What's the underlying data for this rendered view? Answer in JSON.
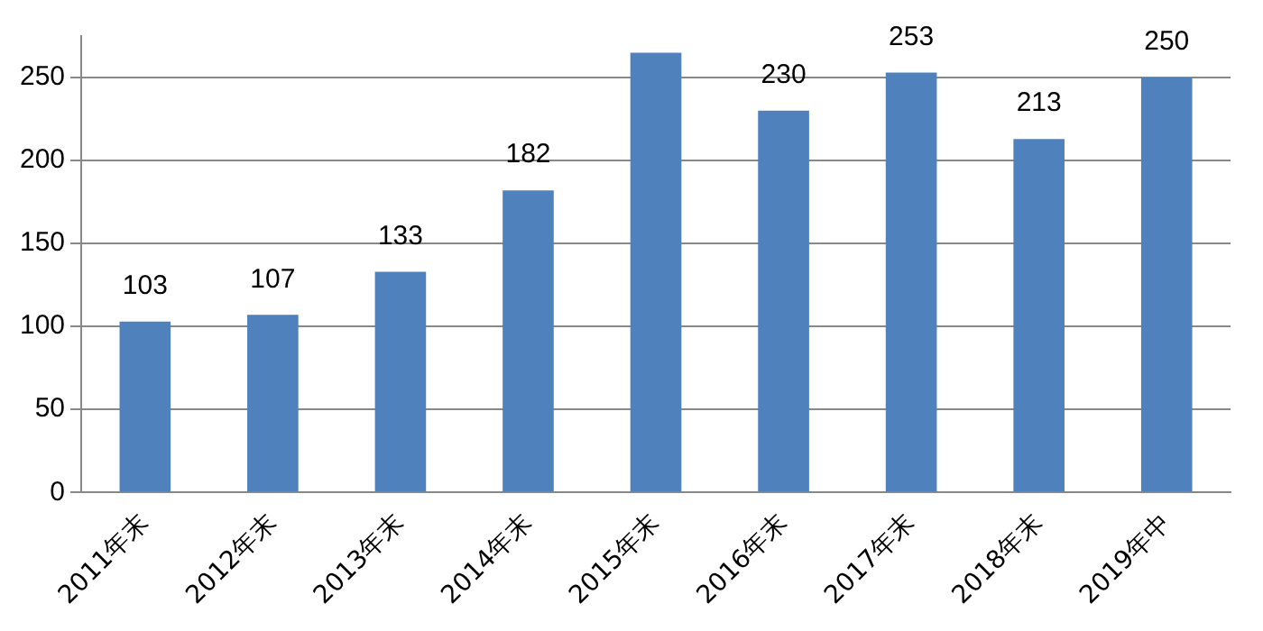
{
  "chart_data": {
    "type": "bar",
    "categories": [
      "2011年末",
      "2012年末",
      "2013年末",
      "2014年末",
      "2015年末",
      "2016年末",
      "2017年末",
      "2018年末",
      "2019年中"
    ],
    "values": [
      103,
      107,
      133,
      182,
      265,
      230,
      253,
      213,
      250
    ],
    "value_labels": [
      "103",
      "107",
      "133",
      "182",
      null,
      "230",
      "253",
      "213",
      "250"
    ],
    "color": "#4f81bd",
    "ylim": [
      0,
      275
    ],
    "yticks": [
      0,
      50,
      100,
      150,
      200,
      250
    ],
    "grid": "y",
    "legend": false
  }
}
